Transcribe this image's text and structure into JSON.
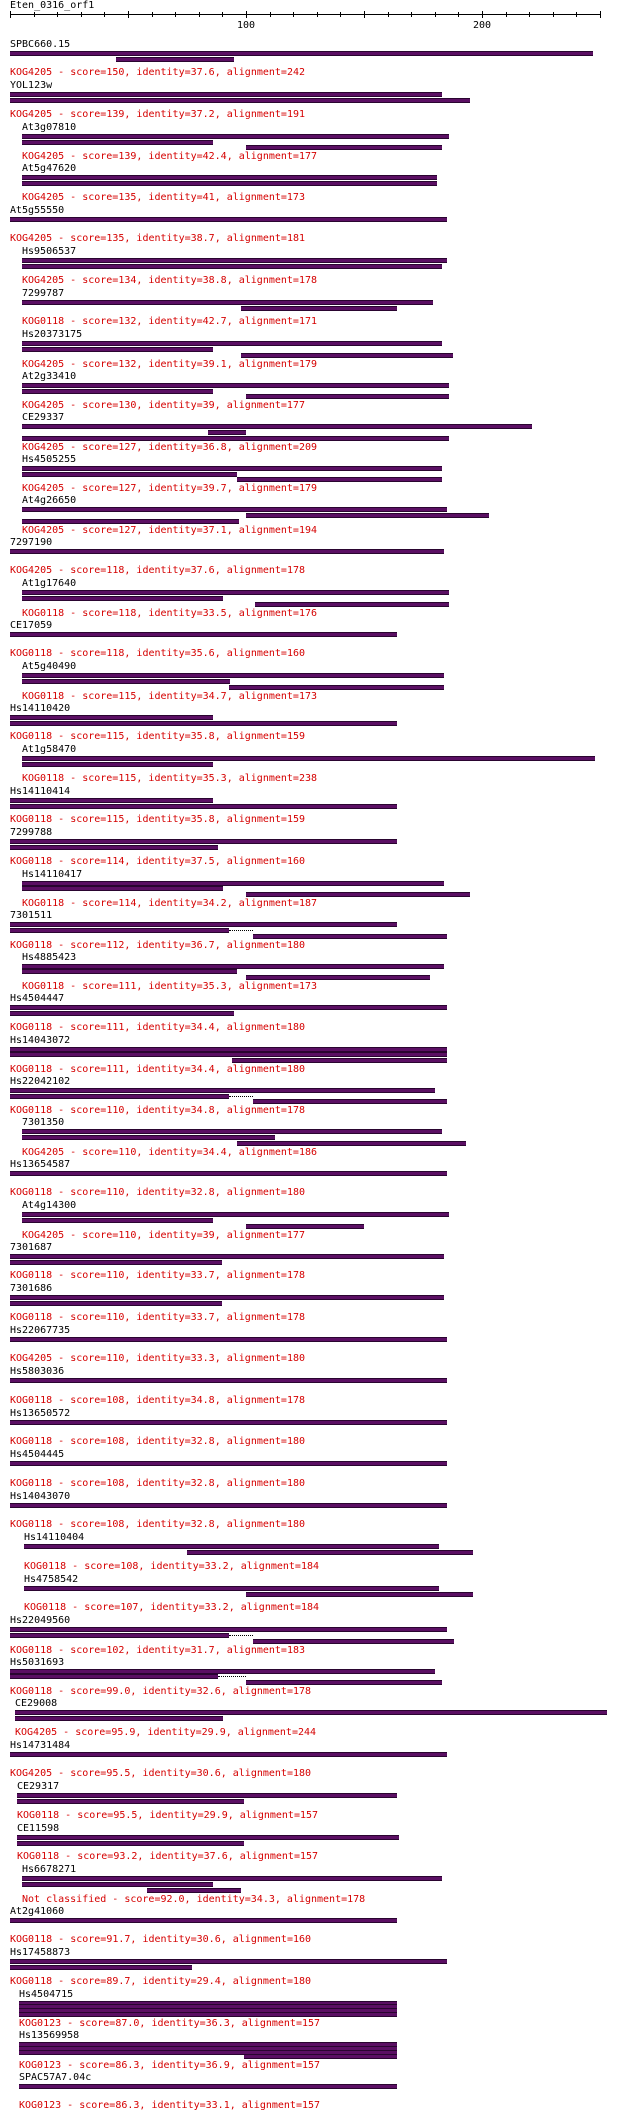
{
  "query": {
    "name": "Eten_0316_orf1",
    "axis_max": 250,
    "axis_ticks": [
      100,
      200
    ]
  },
  "hits": [
    {
      "name": "SPBC660.15",
      "label": "KOG4205 - score=150, identity=37.6, alignment=242",
      "segments": [
        [
          0,
          247
        ],
        [
          45,
          95
        ]
      ],
      "gaps": []
    },
    {
      "name": "YOL123w",
      "label": "KOG4205 - score=139, identity=37.2, alignment=191",
      "segments": [
        [
          0,
          183
        ],
        [
          0,
          195
        ]
      ],
      "gaps": []
    },
    {
      "name": "At3g07810",
      "label": "KOG4205 - score=139, identity=42.4, alignment=177",
      "segments": [
        [
          5,
          186
        ],
        [
          5,
          86
        ],
        [
          100,
          183
        ]
      ],
      "gaps": []
    },
    {
      "name": "At5g47620",
      "label": "KOG4205 - score=135, identity=41, alignment=173",
      "segments": [
        [
          5,
          181
        ],
        [
          5,
          181
        ]
      ],
      "gaps": []
    },
    {
      "name": "At5g55550",
      "label": "KOG4205 - score=135, identity=38.7, alignment=181",
      "segments": [
        [
          0,
          185
        ]
      ],
      "gaps": []
    },
    {
      "name": "Hs9506537",
      "label": "KOG4205 - score=134, identity=38.8, alignment=178",
      "segments": [
        [
          5,
          185
        ],
        [
          5,
          183
        ]
      ],
      "gaps": []
    },
    {
      "name": "7299787",
      "label": "KOG0118 - score=132, identity=42.7, alignment=171",
      "segments": [
        [
          5,
          179
        ],
        [
          98,
          164
        ]
      ],
      "gaps": []
    },
    {
      "name": "Hs20373175",
      "label": "KOG4205 - score=132, identity=39.1, alignment=179",
      "segments": [
        [
          5,
          183
        ],
        [
          5,
          86
        ],
        [
          98,
          188
        ]
      ],
      "gaps": []
    },
    {
      "name": "At2g33410",
      "label": "KOG4205 - score=130, identity=39, alignment=177",
      "segments": [
        [
          5,
          186
        ],
        [
          5,
          86
        ],
        [
          100,
          186
        ]
      ],
      "gaps": []
    },
    {
      "name": "CE29337",
      "label": "KOG4205 - score=127, identity=36.8, alignment=209",
      "segments": [
        [
          5,
          221
        ],
        [
          84,
          100
        ],
        [
          5,
          186
        ]
      ],
      "gaps": []
    },
    {
      "name": "Hs4505255",
      "label": "KOG4205 - score=127, identity=39.7, alignment=179",
      "segments": [
        [
          5,
          183
        ],
        [
          5,
          96
        ],
        [
          96,
          183
        ]
      ],
      "gaps": []
    },
    {
      "name": "At4g26650",
      "label": "KOG4205 - score=127, identity=37.1, alignment=194",
      "segments": [
        [
          5,
          185
        ],
        [
          100,
          203
        ],
        [
          5,
          97
        ]
      ],
      "gaps": []
    },
    {
      "name": "7297190",
      "label": "KOG4205 - score=118, identity=37.6, alignment=178",
      "segments": [
        [
          0,
          184
        ]
      ],
      "gaps": []
    },
    {
      "name": "At1g17640",
      "label": "KOG0118 - score=118, identity=33.5, alignment=176",
      "segments": [
        [
          5,
          186
        ],
        [
          5,
          90
        ],
        [
          104,
          186
        ]
      ],
      "gaps": []
    },
    {
      "name": "CE17059",
      "label": "KOG0118 - score=118, identity=35.6, alignment=160",
      "segments": [
        [
          0,
          164
        ]
      ],
      "gaps": []
    },
    {
      "name": "At5g40490",
      "label": "KOG0118 - score=115, identity=34.7, alignment=173",
      "segments": [
        [
          5,
          184
        ],
        [
          5,
          93
        ],
        [
          93,
          184
        ]
      ],
      "gaps": []
    },
    {
      "name": "Hs14110420",
      "label": "KOG0118 - score=115, identity=35.8, alignment=159",
      "segments": [
        [
          0,
          86
        ],
        [
          0,
          164
        ]
      ],
      "gaps": []
    },
    {
      "name": "At1g58470",
      "label": "KOG0118 - score=115, identity=35.3, alignment=238",
      "segments": [
        [
          5,
          248
        ],
        [
          5,
          86
        ]
      ],
      "gaps": []
    },
    {
      "name": "Hs14110414",
      "label": "KOG0118 - score=115, identity=35.8, alignment=159",
      "segments": [
        [
          0,
          86
        ],
        [
          0,
          164
        ]
      ],
      "gaps": []
    },
    {
      "name": "7299788",
      "label": "KOG0118 - score=114, identity=37.5, alignment=160",
      "segments": [
        [
          0,
          164
        ],
        [
          0,
          88
        ]
      ],
      "gaps": []
    },
    {
      "name": "Hs14110417",
      "label": "KOG0118 - score=114, identity=34.2, alignment=187",
      "segments": [
        [
          5,
          184
        ],
        [
          5,
          90
        ],
        [
          100,
          195
        ]
      ],
      "gaps": []
    },
    {
      "name": "7301511",
      "label": "KOG0118 - score=112, identity=36.7, alignment=180",
      "segments": [
        [
          0,
          164
        ],
        [
          0,
          93
        ],
        [
          103,
          185
        ]
      ],
      "gaps": [
        [
          93,
          103
        ]
      ]
    },
    {
      "name": "Hs4885423",
      "label": "KOG0118 - score=111, identity=35.3, alignment=173",
      "segments": [
        [
          5,
          184
        ],
        [
          5,
          96
        ],
        [
          100,
          178
        ]
      ],
      "gaps": []
    },
    {
      "name": "Hs4504447",
      "label": "KOG0118 - score=111, identity=34.4, alignment=180",
      "segments": [
        [
          0,
          185
        ],
        [
          0,
          95
        ]
      ],
      "gaps": []
    },
    {
      "name": "Hs14043072",
      "label": "KOG0118 - score=111, identity=34.4, alignment=180",
      "segments": [
        [
          0,
          185
        ],
        [
          0,
          185
        ],
        [
          94,
          185
        ]
      ],
      "gaps": []
    },
    {
      "name": "Hs22042102",
      "label": "KOG0118 - score=110, identity=34.8, alignment=178",
      "segments": [
        [
          0,
          180
        ],
        [
          0,
          93
        ],
        [
          103,
          185
        ]
      ],
      "gaps": [
        [
          93,
          103
        ]
      ]
    },
    {
      "name": "7301350",
      "label": "KOG4205 - score=110, identity=34.4, alignment=186",
      "segments": [
        [
          5,
          183
        ],
        [
          5,
          112
        ],
        [
          96,
          193
        ]
      ],
      "gaps": []
    },
    {
      "name": "Hs13654587",
      "label": "KOG0118 - score=110, identity=32.8, alignment=180",
      "segments": [
        [
          0,
          185
        ]
      ],
      "gaps": []
    },
    {
      "name": "At4g14300",
      "label": "KOG4205 - score=110, identity=39, alignment=177",
      "segments": [
        [
          5,
          186
        ],
        [
          5,
          86
        ],
        [
          100,
          150
        ]
      ],
      "gaps": []
    },
    {
      "name": "7301687",
      "label": "KOG0118 - score=110, identity=33.7, alignment=178",
      "segments": [
        [
          0,
          184
        ],
        [
          0,
          90
        ]
      ],
      "gaps": []
    },
    {
      "name": "7301686",
      "label": "KOG0118 - score=110, identity=33.7, alignment=178",
      "segments": [
        [
          0,
          184
        ],
        [
          0,
          90
        ]
      ],
      "gaps": []
    },
    {
      "name": "Hs22067735",
      "label": "KOG4205 - score=110, identity=33.3, alignment=180",
      "segments": [
        [
          0,
          185
        ]
      ],
      "gaps": []
    },
    {
      "name": "Hs5803036",
      "label": "KOG0118 - score=108, identity=34.8, alignment=178",
      "segments": [
        [
          0,
          185
        ]
      ],
      "gaps": []
    },
    {
      "name": "Hs13650572",
      "label": "KOG0118 - score=108, identity=32.8, alignment=180",
      "segments": [
        [
          0,
          185
        ]
      ],
      "gaps": []
    },
    {
      "name": "Hs4504445",
      "label": "KOG0118 - score=108, identity=32.8, alignment=180",
      "segments": [
        [
          0,
          185
        ]
      ],
      "gaps": []
    },
    {
      "name": "Hs14043070",
      "label": "KOG0118 - score=108, identity=32.8, alignment=180",
      "segments": [
        [
          0,
          185
        ]
      ],
      "gaps": []
    },
    {
      "name": "Hs14110404",
      "label": "KOG0118 - score=108, identity=33.2, alignment=184",
      "segments": [
        [
          6,
          182
        ],
        [
          75,
          196
        ]
      ],
      "gaps": []
    },
    {
      "name": "Hs4758542",
      "label": "KOG0118 - score=107, identity=33.2, alignment=184",
      "segments": [
        [
          6,
          182
        ],
        [
          100,
          196
        ]
      ],
      "gaps": []
    },
    {
      "name": "Hs22049560",
      "label": "KOG0118 - score=102, identity=31.7, alignment=183",
      "segments": [
        [
          0,
          185
        ],
        [
          0,
          93
        ],
        [
          103,
          188
        ]
      ],
      "gaps": [
        [
          93,
          103
        ]
      ]
    },
    {
      "name": "Hs5031693",
      "label": "KOG0118 - score=99.0, identity=32.6, alignment=178",
      "segments": [
        [
          0,
          180
        ],
        [
          0,
          88
        ],
        [
          100,
          183
        ]
      ],
      "gaps": [
        [
          88,
          100
        ]
      ]
    },
    {
      "name": "CE29008",
      "label": "KOG4205 - score=95.9, identity=29.9, alignment=244",
      "segments": [
        [
          2,
          253
        ],
        [
          2,
          90
        ]
      ],
      "gaps": []
    },
    {
      "name": "Hs14731484",
      "label": "KOG4205 - score=95.5, identity=30.6, alignment=180",
      "segments": [
        [
          0,
          185
        ]
      ],
      "gaps": []
    },
    {
      "name": "CE29317",
      "label": "KOG0118 - score=95.5, identity=29.9, alignment=157",
      "segments": [
        [
          3,
          164
        ],
        [
          3,
          99
        ]
      ],
      "gaps": []
    },
    {
      "name": "CE11598",
      "label": "KOG0118 - score=93.2, identity=37.6, alignment=157",
      "segments": [
        [
          3,
          165
        ],
        [
          3,
          99
        ]
      ],
      "gaps": []
    },
    {
      "name": "Hs6678271",
      "label": "Not classified - score=92.0, identity=34.3, alignment=178",
      "segments": [
        [
          5,
          183
        ],
        [
          5,
          86
        ],
        [
          58,
          98
        ]
      ],
      "gaps": []
    },
    {
      "name": "At2g41060",
      "label": "KOG0118 - score=91.7, identity=30.6, alignment=160",
      "segments": [
        [
          0,
          164
        ]
      ],
      "gaps": []
    },
    {
      "name": "Hs17458873",
      "label": "KOG0118 - score=89.7, identity=29.4, alignment=180",
      "segments": [
        [
          0,
          185
        ],
        [
          0,
          77
        ]
      ],
      "gaps": []
    },
    {
      "name": "Hs4504715",
      "label": "KOG0123 - score=87.0, identity=36.3, alignment=157",
      "segments": [
        [
          4,
          164
        ],
        [
          4,
          164
        ],
        [
          4,
          164
        ],
        [
          4,
          164
        ]
      ],
      "gaps": []
    },
    {
      "name": "Hs13569958",
      "label": "KOG0123 - score=86.3, identity=36.9, alignment=157",
      "segments": [
        [
          4,
          164
        ],
        [
          4,
          164
        ],
        [
          4,
          164
        ],
        [
          99,
          164
        ]
      ],
      "gaps": []
    },
    {
      "name": "SPAC57A7.04c",
      "label": "KOG0123 - score=86.3, identity=33.1, alignment=157",
      "segments": [
        [
          4,
          164
        ]
      ],
      "gaps": []
    }
  ]
}
